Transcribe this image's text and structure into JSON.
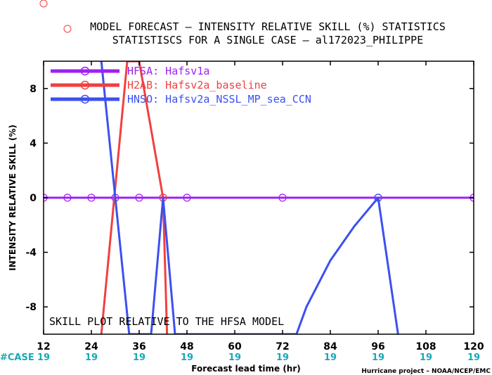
{
  "chart_data": {
    "type": "line",
    "title": "MODEL FORECAST – INTENSITY RELATIVE SKILL (%) STATISTICS",
    "subtitle": "STATISTISCS FOR A SINGLE CASE – al172023_PHILIPPE",
    "xlabel": "Forecast lead time (hr)",
    "ylabel": "INTENSITY RELATIVE SKILL (%)",
    "xlim": [
      12,
      120
    ],
    "ylim": [
      -10,
      10
    ],
    "x_ticks": [
      12,
      24,
      36,
      48,
      60,
      72,
      84,
      96,
      108,
      120
    ],
    "y_ticks": [
      -8,
      -4,
      0,
      4,
      8
    ],
    "case_label": "#CASE",
    "case_counts": [
      "19",
      "19",
      "19",
      "19",
      "19",
      "19",
      "19",
      "19",
      "19",
      "19"
    ],
    "annotation": "SKILL PLOT RELATIVE TO THE HFSA MODEL",
    "credit": "Hurricane project – NOAA/NCEP/EMC",
    "legend_position": "top-left",
    "grid": false,
    "series": [
      {
        "name": "HFSA: Hafsv1a",
        "color": "#a020f0",
        "x": [
          12,
          18,
          24,
          30,
          36,
          42,
          48,
          72,
          96,
          120
        ],
        "y": [
          0,
          0,
          0,
          0,
          0,
          0,
          0,
          0,
          0,
          0
        ],
        "markers": [
          12,
          18,
          24,
          30,
          36,
          42,
          48,
          72,
          96,
          120
        ]
      },
      {
        "name": "H2AB: Hafsv2a_baseline",
        "color": "#f04040",
        "x": [
          26.5,
          33,
          36,
          42,
          43
        ],
        "y": [
          -10,
          10,
          10,
          0,
          -10
        ],
        "markers": [
          42
        ]
      },
      {
        "name": "HNSO: Hafsv2a_NSSL_MP_sea_CCN",
        "color": "#3c50f0",
        "x": [
          26.5,
          30,
          33.5,
          39,
          42,
          45,
          75.5,
          78,
          84,
          90,
          96,
          101
        ],
        "y": [
          10,
          0,
          -10,
          -10,
          0,
          -10,
          -10,
          -8,
          -4.6,
          -2.1,
          0,
          -10
        ],
        "markers": [
          96
        ]
      }
    ]
  }
}
